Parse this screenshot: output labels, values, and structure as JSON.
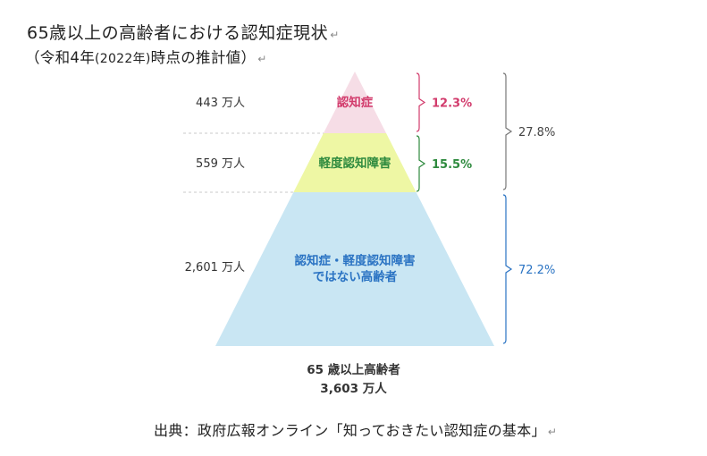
{
  "title": {
    "line1": "65歳以上の高齢者における認知症現状",
    "line2_a": "（令和4年",
    "line2_b": "(2022年)",
    "line2_c": "時点の推計値）"
  },
  "total": {
    "label": "65 歳以上高齢者",
    "value": "3,603 万人"
  },
  "source": "出典：政府広報オンライン「知っておきたい認知症の基本」",
  "colors": {
    "dementia": "#f6dde6",
    "mci": "#eef7a4",
    "healthy": "#c9e6f3",
    "dementia_text": "#d23b6c",
    "mci_text": "#2e8a3e",
    "healthy_text": "#2a73c3",
    "bracket_outer": "#777777"
  },
  "chart_data": {
    "type": "pyramid",
    "unit": "万人",
    "segments": [
      {
        "label": "認知症",
        "count_label": "443 万人",
        "value": 443,
        "percent": 12.3,
        "percent_label": "12.3%"
      },
      {
        "label": "軽度認知障害",
        "count_label": "559 万人",
        "value": 559,
        "percent": 15.5,
        "percent_label": "15.5%"
      },
      {
        "label": "認知症・軽度認知障害\nではない高齢者",
        "count_label": "2,601 万人",
        "value": 2601,
        "percent": 72.2,
        "percent_label": "72.2%"
      }
    ],
    "combined": {
      "percent": 27.8,
      "percent_label": "27.8%"
    }
  }
}
